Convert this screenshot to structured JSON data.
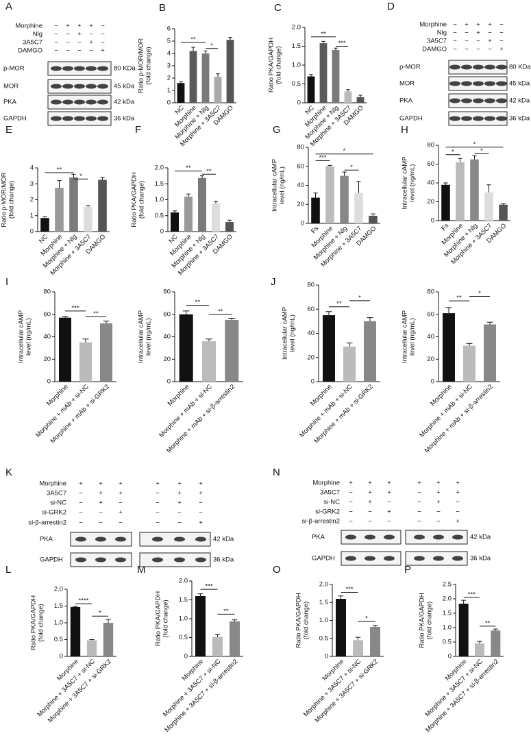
{
  "chart_data": [
    {
      "type": "bar",
      "panel": "B",
      "ylabel": [
        "Ratio p-MOR/MOR",
        "(fold change)"
      ],
      "categories": [
        "NC",
        "Morphine",
        "Morphine + Nlg",
        "Morphine + 3A5C7",
        "DAMGO"
      ],
      "values": [
        1.6,
        4.2,
        4.0,
        2.1,
        5.1
      ],
      "errors": [
        0.1,
        0.3,
        0.2,
        0.25,
        0.2
      ],
      "colors": [
        "#111111",
        "#5a5a5a",
        "#7a7a7a",
        "#aaaaaa",
        "#555555"
      ],
      "ylim": [
        0,
        6
      ],
      "yticks": [
        0,
        1,
        2,
        3,
        4,
        5,
        6
      ],
      "annotations": [
        {
          "text": "**",
          "from": 0,
          "to": 2,
          "y": 4.9
        },
        {
          "text": "*",
          "from": 2,
          "to": 3,
          "y": 4.4
        }
      ]
    },
    {
      "type": "bar",
      "panel": "C",
      "ylabel": [
        "Ratio PKA/GAPDH",
        "(fold change)"
      ],
      "categories": [
        "NC",
        "Morphine",
        "Morphine + Nlg",
        "Morphine + 3A5C7",
        "DAMGO"
      ],
      "values": [
        0.7,
        1.58,
        1.4,
        0.3,
        0.15
      ],
      "errors": [
        0.05,
        0.05,
        0.05,
        0.05,
        0.05
      ],
      "colors": [
        "#111111",
        "#5a5a5a",
        "#7a7a7a",
        "#bbbbbb",
        "#555555"
      ],
      "ylim": [
        0,
        2
      ],
      "yticks": [
        0,
        0.5,
        {
          "value": 1,
          "label": "1.0"
        },
        1.5,
        {
          "value": 2,
          "label": "2.0"
        }
      ],
      "annotations": [
        {
          "text": "**",
          "from": 0,
          "to": 2,
          "y": 1.75
        },
        {
          "text": "***",
          "from": 2,
          "to": 3,
          "y": 1.5
        }
      ]
    },
    {
      "type": "bar",
      "panel": "E",
      "ylabel": [
        "Ratio p-MOR/MOR",
        "(fold change)"
      ],
      "categories": [
        "NC",
        "Morphine",
        "Morphine + Nlg",
        "Morphine + 3A5C7",
        "DAMGO"
      ],
      "values": [
        0.85,
        2.75,
        3.4,
        1.55,
        3.25
      ],
      "errors": [
        0.08,
        0.45,
        0.2,
        0.08,
        0.15
      ],
      "colors": [
        "#111111",
        "#999999",
        "#7a7a7a",
        "#dddddd",
        "#555555"
      ],
      "ylim": [
        0,
        4
      ],
      "yticks": [
        0,
        1,
        2,
        3,
        4
      ],
      "annotations": [
        {
          "text": "**",
          "from": 0,
          "to": 2,
          "y": 3.7
        },
        {
          "text": "*",
          "from": 2,
          "to": 3,
          "y": 3.3
        }
      ]
    },
    {
      "type": "bar",
      "panel": "F",
      "ylabel": [
        "Ratio PKA/GAPDH",
        "(fold change)"
      ],
      "categories": [
        "NC",
        "Morphine",
        "Morphine + Nlg",
        "Morphine + 3A5C7",
        "DAMGO"
      ],
      "values": [
        0.6,
        1.1,
        1.68,
        0.88,
        0.3
      ],
      "errors": [
        0.05,
        0.08,
        0.07,
        0.07,
        0.06
      ],
      "colors": [
        "#111111",
        "#999999",
        "#7a7a7a",
        "#dddddd",
        "#555555"
      ],
      "ylim": [
        0,
        2
      ],
      "yticks": [
        0,
        0.5,
        {
          "value": 1,
          "label": "1.0"
        },
        1.5,
        {
          "value": 2,
          "label": "2.0"
        }
      ],
      "annotations": [
        {
          "text": "**",
          "from": 0,
          "to": 2,
          "y": 1.9
        },
        {
          "text": "**",
          "from": 2,
          "to": 3,
          "y": 1.8
        }
      ]
    },
    {
      "type": "bar",
      "panel": "G",
      "ylabel": [
        "Intracellular cAMP",
        "level (ng/mL)"
      ],
      "categories": [
        "Fs",
        "Morphine",
        "Morphine + Nlg",
        "Morphine + 3A5C7",
        "DAMGO"
      ],
      "values": [
        27,
        60,
        50,
        32,
        8
      ],
      "errors": [
        5,
        1,
        4,
        12,
        2
      ],
      "colors": [
        "#111111",
        "#bbbbbb",
        "#888888",
        "#dddddd",
        "#555555"
      ],
      "ylim": [
        0,
        80
      ],
      "yticks": [
        0,
        20,
        40,
        60,
        80
      ],
      "annotations": [
        {
          "text": "***",
          "from": 0,
          "to": 1,
          "y": 66
        },
        {
          "text": "*",
          "from": 2,
          "to": 3,
          "y": 56
        },
        {
          "text": "*",
          "from": 0,
          "to": 4,
          "y": 73
        }
      ]
    },
    {
      "type": "bar",
      "panel": "H",
      "ylabel": [
        "Intracellular cAMP",
        "level (ng/mL)"
      ],
      "categories": [
        "Fs",
        "Morphine",
        "Morphine + Nlg",
        "Morphine + 3A5C7",
        "DAMGO"
      ],
      "values": [
        38,
        62,
        65,
        30,
        17
      ],
      "errors": [
        2,
        4,
        4,
        8,
        1
      ],
      "colors": [
        "#111111",
        "#bbbbbb",
        "#888888",
        "#dddddd",
        "#555555"
      ],
      "ylim": [
        0,
        80
      ],
      "yticks": [
        0,
        20,
        40,
        60,
        80
      ],
      "annotations": [
        {
          "text": "*",
          "from": 0,
          "to": 1,
          "y": 70
        },
        {
          "text": "*",
          "from": 2,
          "to": 3,
          "y": 71
        },
        {
          "text": "*",
          "from": 0,
          "to": 4,
          "y": 78
        }
      ]
    },
    {
      "type": "bar",
      "panel": "I",
      "ylabel": [
        "Intracellular cAMP",
        "level (ng/mL)"
      ],
      "categories": [
        "Morphine",
        "Morphine + mAb + si-NC",
        "Morphine + mAb + si-GRK2"
      ],
      "values": [
        57,
        35,
        52
      ],
      "errors": [
        1,
        3,
        2
      ],
      "colors": [
        "#111111",
        "#bbbbbb",
        "#888888"
      ],
      "ylim": [
        0,
        80
      ],
      "yticks": [
        0,
        20,
        40,
        60,
        80
      ],
      "annotations": [
        {
          "text": "***",
          "from": 0,
          "to": 1,
          "y": 63
        },
        {
          "text": "**",
          "from": 1,
          "to": 2,
          "y": 58
        }
      ]
    },
    {
      "type": "bar",
      "ylabel": [
        "Intracellular cAMP",
        "level (ng/mL)"
      ],
      "categories": [
        "Morphine",
        "Morphine + mAb + si-NC",
        "Morphine + mAb + si-β-arrestin2"
      ],
      "values": [
        60,
        36,
        55
      ],
      "errors": [
        3,
        2,
        1.5
      ],
      "colors": [
        "#111111",
        "#bbbbbb",
        "#888888"
      ],
      "ylim": [
        0,
        80
      ],
      "yticks": [
        0,
        20,
        40,
        60,
        80
      ],
      "annotations": [
        {
          "text": "**",
          "from": 0,
          "to": 1,
          "y": 68
        },
        {
          "text": "**",
          "from": 1,
          "to": 2,
          "y": 60
        }
      ]
    },
    {
      "type": "bar",
      "panel": "J",
      "ylabel": [
        "Intracellular cAMP",
        "level (ng/mL)"
      ],
      "categories": [
        "Morphine",
        "Morphine + mAb + si-NC",
        "Morphine + mAb + si-GRK2"
      ],
      "values": [
        55,
        29,
        50
      ],
      "errors": [
        3,
        3,
        3
      ],
      "colors": [
        "#111111",
        "#bbbbbb",
        "#888888"
      ],
      "ylim": [
        0,
        80
      ],
      "yticks": [
        0,
        20,
        40,
        60,
        80
      ],
      "annotations": [
        {
          "text": "**",
          "from": 0,
          "to": 1,
          "y": 62
        },
        {
          "text": "*",
          "from": 1,
          "to": 2,
          "y": 67
        }
      ]
    },
    {
      "type": "bar",
      "ylabel": [
        "Intracellular cAMP",
        "level (ng/mL)"
      ],
      "categories": [
        "Morphine",
        "Morphine + mAb + si-NC",
        "Morphine + mAb + si-β-arrestin2"
      ],
      "values": [
        61,
        32,
        51
      ],
      "errors": [
        5,
        2,
        2
      ],
      "colors": [
        "#111111",
        "#bbbbbb",
        "#888888"
      ],
      "ylim": [
        0,
        80
      ],
      "yticks": [
        0,
        20,
        40,
        60,
        80
      ],
      "annotations": [
        {
          "text": "**",
          "from": 0,
          "to": 1,
          "y": 72
        },
        {
          "text": "*",
          "from": 1,
          "to": 2,
          "y": 76
        }
      ]
    },
    {
      "type": "bar",
      "panel": "L",
      "ylabel": [
        "Ratio PKA/GAPDH",
        "(fold change)"
      ],
      "categories": [
        "Morphine",
        "Morphine + 3A5C7 + si-NC",
        "Morphine + 3A5C7 + si-GRK2"
      ],
      "values": [
        1.47,
        0.48,
        1.0
      ],
      "errors": [
        0.02,
        0.02,
        0.1
      ],
      "colors": [
        "#111111",
        "#bbbbbb",
        "#888888"
      ],
      "ylim": [
        0,
        2
      ],
      "yticks": [
        0,
        0.5,
        {
          "value": 1,
          "label": "1.0"
        },
        1.5,
        {
          "value": 2,
          "label": "2.0"
        }
      ],
      "annotations": [
        {
          "text": "****",
          "from": 0,
          "to": 1,
          "y": 1.57
        },
        {
          "text": "*",
          "from": 1,
          "to": 2,
          "y": 1.2
        }
      ]
    },
    {
      "type": "bar",
      "panel": "M",
      "ylabel": [
        "Ratio PKA/GAPDH",
        "(fold change)"
      ],
      "categories": [
        "Morphine",
        "Morphine + 3A5C7 + si-NC",
        "Morphine + 3A5C7 + si-β-arrestin2"
      ],
      "values": [
        1.6,
        0.52,
        0.93
      ],
      "errors": [
        0.06,
        0.06,
        0.04
      ],
      "colors": [
        "#111111",
        "#bbbbbb",
        "#888888"
      ],
      "ylim": [
        0,
        2
      ],
      "yticks": [
        0,
        0.5,
        {
          "value": 1,
          "label": "1.0"
        },
        1.5,
        {
          "value": 2,
          "label": "2.0"
        }
      ],
      "annotations": [
        {
          "text": "***",
          "from": 0,
          "to": 1,
          "y": 1.78
        },
        {
          "text": "**",
          "from": 1,
          "to": 2,
          "y": 1.12
        }
      ]
    },
    {
      "type": "bar",
      "panel": "O",
      "ylabel": [
        "Ratio PKA/GAPDH",
        "(fold change)"
      ],
      "categories": [
        "Morphine",
        "Morphine + 3A5C7 + si-NC",
        "Morphine + 3A5C7 + si-GRK2"
      ],
      "values": [
        1.6,
        0.45,
        0.82
      ],
      "errors": [
        0.08,
        0.08,
        0.04
      ],
      "colors": [
        "#111111",
        "#bbbbbb",
        "#888888"
      ],
      "ylim": [
        0,
        2
      ],
      "yticks": [
        0,
        0.5,
        {
          "value": 1,
          "label": "1.0"
        },
        1.5,
        {
          "value": 2,
          "label": "2.0"
        }
      ],
      "annotations": [
        {
          "text": "***",
          "from": 0,
          "to": 1,
          "y": 1.78
        },
        {
          "text": "*",
          "from": 1,
          "to": 2,
          "y": 0.97
        }
      ]
    },
    {
      "type": "bar",
      "panel": "P",
      "ylabel": [
        "Ratio PKA/GAPDH",
        "(fold change)"
      ],
      "categories": [
        "Morphine",
        "Morphine + 3A5C7 + si-NC",
        "Morphine + 3A5C7 + si-β-arrestin2"
      ],
      "values": [
        1.83,
        0.45,
        0.9
      ],
      "errors": [
        0.12,
        0.07,
        0.05
      ],
      "colors": [
        "#111111",
        "#bbbbbb",
        "#888888"
      ],
      "ylim": [
        0,
        2.5
      ],
      "yticks": [
        0,
        0.5,
        {
          "value": 1,
          "label": "1.0"
        },
        1.5,
        {
          "value": 2,
          "label": "2.0"
        },
        2.5
      ],
      "annotations": [
        {
          "text": "***",
          "from": 0,
          "to": 1,
          "y": 2.05
        },
        {
          "text": "**",
          "from": 1,
          "to": 2,
          "y": 1.05
        }
      ]
    }
  ],
  "blots": [
    {
      "panel": "A",
      "conditions": [
        {
          "name": "Morphine",
          "signs": [
            "−",
            "+",
            "+",
            "+",
            "−"
          ]
        },
        {
          "name": "Nlg",
          "signs": [
            "−",
            "−",
            "+",
            "−",
            "−"
          ]
        },
        {
          "name": "3A5C7",
          "signs": [
            "−",
            "−",
            "−",
            "+",
            "−"
          ]
        },
        {
          "name": "DAMGO",
          "signs": [
            "−",
            "−",
            "−",
            "−",
            "+"
          ]
        }
      ],
      "bands": [
        {
          "name": "p-MOR",
          "size": "80 KDa"
        },
        {
          "name": "MOR",
          "size": "45 kDa"
        },
        {
          "name": "PKA",
          "size": "42 kDa"
        },
        {
          "name": "GAPDH",
          "size": "36 kDa"
        }
      ]
    },
    {
      "panel": "D",
      "conditions": [
        {
          "name": "Morphine",
          "signs": [
            "−",
            "+",
            "+",
            "+",
            "−"
          ]
        },
        {
          "name": "Nlg",
          "signs": [
            "−",
            "−",
            "+",
            "−",
            "−"
          ]
        },
        {
          "name": "3A5C7",
          "signs": [
            "−",
            "−",
            "−",
            "+",
            "−"
          ]
        },
        {
          "name": "DAMGO",
          "signs": [
            "−",
            "−",
            "−",
            "−",
            "+"
          ]
        }
      ],
      "bands": [
        {
          "name": "p-MOR",
          "size": "80 KDa"
        },
        {
          "name": "MOR",
          "size": "45 kDa"
        },
        {
          "name": "PKA",
          "size": "42 kDa"
        },
        {
          "name": "GAPDH",
          "size": "36 kDa"
        }
      ]
    },
    {
      "panel": "K",
      "conditions": [
        {
          "name": "Morphine",
          "signs": [
            "+",
            "+",
            "+",
            "+",
            "+",
            "+"
          ]
        },
        {
          "name": "3A5C7",
          "signs": [
            "−",
            "+",
            "+",
            "−",
            "+",
            "+"
          ]
        },
        {
          "name": "si-NC",
          "signs": [
            "−",
            "+",
            "−",
            "−",
            "+",
            "−"
          ]
        },
        {
          "name": "si-GRK2",
          "signs": [
            "−",
            "−",
            "+",
            "−",
            "−",
            "−"
          ]
        },
        {
          "name": "si-β-arrestin2",
          "signs": [
            "−",
            "−",
            "−",
            "−",
            "−",
            "+"
          ]
        }
      ],
      "bands": [
        {
          "name": "PKA",
          "size": "42 kDa"
        },
        {
          "name": "GAPDH",
          "size": "36 kDa"
        }
      ]
    },
    {
      "panel": "N",
      "conditions": [
        {
          "name": "Morphine",
          "signs": [
            "+",
            "+",
            "+",
            "+",
            "+",
            "+"
          ]
        },
        {
          "name": "3A5C7",
          "signs": [
            "−",
            "+",
            "+",
            "−",
            "+",
            "+"
          ]
        },
        {
          "name": "si-NC",
          "signs": [
            "−",
            "+",
            "−",
            "−",
            "+",
            "−"
          ]
        },
        {
          "name": "si-GRK2",
          "signs": [
            "−",
            "−",
            "+",
            "−",
            "−",
            "−"
          ]
        },
        {
          "name": "si-β-arrestin2",
          "signs": [
            "−",
            "−",
            "−",
            "−",
            "−",
            "+"
          ]
        }
      ],
      "bands": [
        {
          "name": "PKA",
          "size": "42 kDa"
        },
        {
          "name": "GAPDH",
          "size": "36 kDa"
        }
      ]
    }
  ]
}
